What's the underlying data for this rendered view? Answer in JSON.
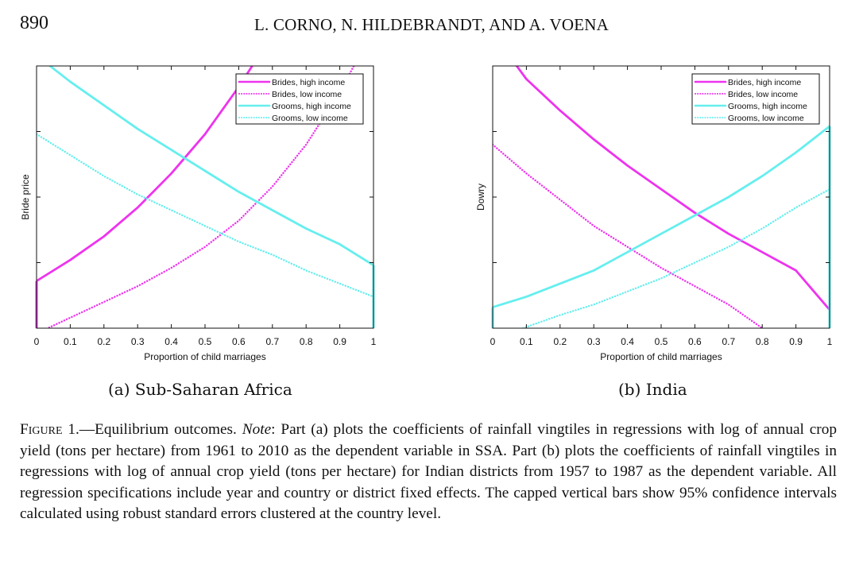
{
  "header": {
    "page_number": "890",
    "running_head": "L. CORNO, N. HILDEBRANDT, AND A. VOENA"
  },
  "panels": [
    {
      "subcaption": "(a) Sub-Saharan Africa"
    },
    {
      "subcaption": "(b) India"
    }
  ],
  "caption": {
    "figure_label": "Figure 1",
    "title": ".—Equilibrium outcomes. ",
    "note_label": "Note",
    "text": ": Part (a) plots the coefficients of rainfall vingtiles in regressions with log of annual crop yield (tons per hectare) from 1961 to 2010 as the dependent variable in SSA. Part (b) plots the coefficients of rainfall vingtiles in regressions with log of annual crop yield (tons per hectare) for Indian districts from 1957 to 1987 as the dependent variable. All regression specifications include year and country or district fixed effects. The capped vertical bars show 95% confidence intervals calculated using robust standard errors clustered at the country level."
  },
  "colors": {
    "brides": "#ee33ee",
    "grooms": "#66eeee"
  },
  "chart_data": [
    {
      "type": "line",
      "xlabel": "Proportion of child marriages",
      "ylabel": "Bride price",
      "xlim": [
        0,
        1
      ],
      "ylim": [
        0,
        1
      ],
      "x_ticks": [
        "0",
        "0.1",
        "0.2",
        "0.3",
        "0.4",
        "0.5",
        "0.6",
        "0.7",
        "0.8",
        "0.9",
        "1"
      ],
      "legend_position": "top-right",
      "series": [
        {
          "name": "Brides, high income",
          "style": "solid",
          "color": "#ee33ee",
          "x": [
            0,
            0.1,
            0.2,
            0.3,
            0.4,
            0.5,
            0.6,
            0.65
          ],
          "y": [
            0.18,
            0.26,
            0.35,
            0.46,
            0.59,
            0.74,
            0.92,
            1.02
          ]
        },
        {
          "name": "Brides, low income",
          "style": "dotted",
          "color": "#ee33ee",
          "x": [
            0,
            0.1,
            0.2,
            0.3,
            0.4,
            0.5,
            0.6,
            0.7,
            0.8,
            0.9,
            0.95
          ],
          "y": [
            -0.02,
            0.04,
            0.1,
            0.16,
            0.23,
            0.31,
            0.41,
            0.54,
            0.7,
            0.9,
            1.02
          ]
        },
        {
          "name": "Grooms, high income",
          "style": "solid",
          "color": "#66eeee",
          "x": [
            0.04,
            0.1,
            0.2,
            0.3,
            0.4,
            0.5,
            0.6,
            0.7,
            0.8,
            0.9,
            1
          ],
          "y": [
            1.0,
            0.94,
            0.85,
            0.76,
            0.68,
            0.6,
            0.52,
            0.45,
            0.38,
            0.32,
            0.24
          ]
        },
        {
          "name": "Grooms, low income",
          "style": "dotted",
          "color": "#66eeee",
          "x": [
            0,
            0.1,
            0.2,
            0.3,
            0.4,
            0.5,
            0.6,
            0.7,
            0.8,
            0.9,
            1
          ],
          "y": [
            0.74,
            0.66,
            0.58,
            0.51,
            0.45,
            0.39,
            0.33,
            0.28,
            0.22,
            0.17,
            0.12
          ]
        }
      ]
    },
    {
      "type": "line",
      "xlabel": "Proportion of child marriages",
      "ylabel": "Dowry",
      "xlim": [
        0,
        1
      ],
      "ylim": [
        0,
        1
      ],
      "x_ticks": [
        "0",
        "0.1",
        "0.2",
        "0.3",
        "0.4",
        "0.5",
        "0.6",
        "0.7",
        "0.8",
        "0.9",
        "1"
      ],
      "legend_position": "top-right",
      "series": [
        {
          "name": "Brides, high income",
          "style": "solid",
          "color": "#ee33ee",
          "x": [
            0.06,
            0.1,
            0.2,
            0.3,
            0.4,
            0.5,
            0.6,
            0.7,
            0.8,
            0.9,
            1
          ],
          "y": [
            1.02,
            0.95,
            0.83,
            0.72,
            0.62,
            0.53,
            0.44,
            0.36,
            0.29,
            0.22,
            0.07
          ]
        },
        {
          "name": "Brides, low income",
          "style": "dotted",
          "color": "#ee33ee",
          "x": [
            0,
            0.1,
            0.2,
            0.3,
            0.4,
            0.5,
            0.6,
            0.7,
            0.8
          ],
          "y": [
            0.7,
            0.59,
            0.49,
            0.39,
            0.31,
            0.23,
            0.16,
            0.09,
            0.0
          ]
        },
        {
          "name": "Grooms, high income",
          "style": "solid",
          "color": "#66eeee",
          "x": [
            0,
            0.1,
            0.2,
            0.3,
            0.4,
            0.5,
            0.6,
            0.7,
            0.8,
            0.9,
            1
          ],
          "y": [
            0.08,
            0.12,
            0.17,
            0.22,
            0.29,
            0.36,
            0.43,
            0.5,
            0.58,
            0.67,
            0.77
          ]
        },
        {
          "name": "Grooms, low income",
          "style": "dotted",
          "color": "#66eeee",
          "x": [
            0.09,
            0.2,
            0.3,
            0.4,
            0.5,
            0.6,
            0.7,
            0.8,
            0.9,
            1
          ],
          "y": [
            0.0,
            0.05,
            0.09,
            0.14,
            0.19,
            0.25,
            0.31,
            0.38,
            0.46,
            0.53
          ]
        }
      ]
    }
  ]
}
